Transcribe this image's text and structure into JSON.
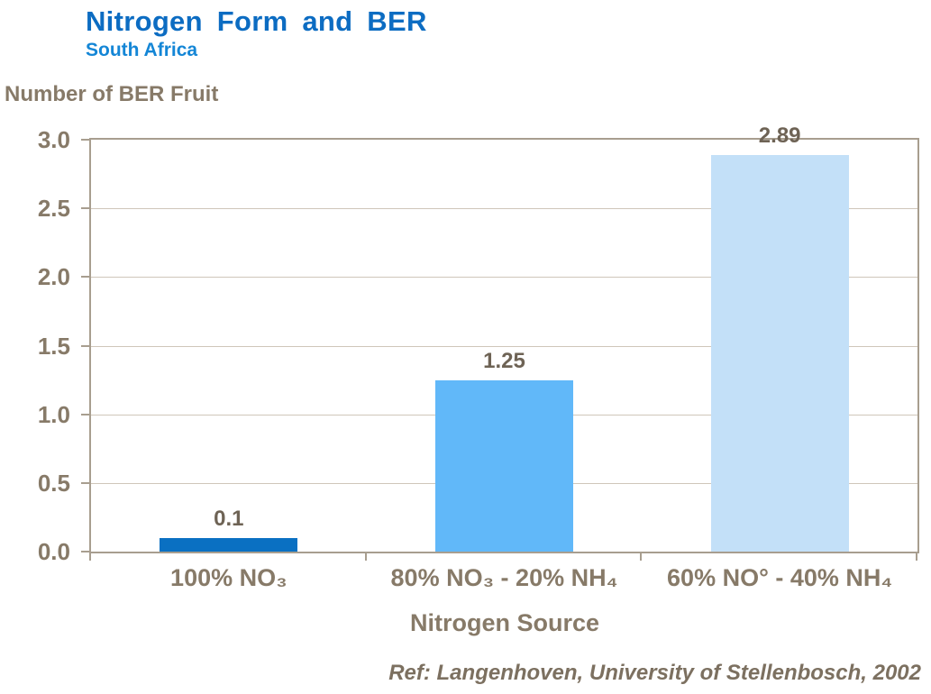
{
  "header": {
    "title": "Nitrogen Form and BER",
    "subtitle": "South Africa"
  },
  "chart_data": {
    "type": "bar",
    "title": "Nitrogen Form and BER",
    "subtitle": "South Africa",
    "ylabel": "Number of BER Fruit",
    "xlabel": "Nitrogen Source",
    "categories": [
      "100% NO₃",
      "80% NO₃ - 20% NH₄",
      "60% NO° - 40% NH₄"
    ],
    "values": [
      0.1,
      1.25,
      2.89
    ],
    "value_labels": [
      "0.1",
      "1.25",
      "2.89"
    ],
    "bar_colors": [
      "#0a70c2",
      "#61b8f9",
      "#c3e0f8"
    ],
    "ylim": [
      0,
      3
    ],
    "ytick_labels_top_to_bottom": [
      "3.0",
      "2.5",
      "2.0",
      "1.5",
      "1.0",
      "0.5",
      "0.0"
    ],
    "grid": true,
    "legend": false
  },
  "footer": {
    "reference": "Ref: Langenhoven, University of Stellenbosch, 2002"
  },
  "colors": {
    "title_blue": "#0c6cc2",
    "subtitle_blue": "#1486d6",
    "axis_border": "#a89e8f",
    "gridline": "#cfc6ba",
    "label_text": "#877a68",
    "value_text": "#6e6355"
  }
}
